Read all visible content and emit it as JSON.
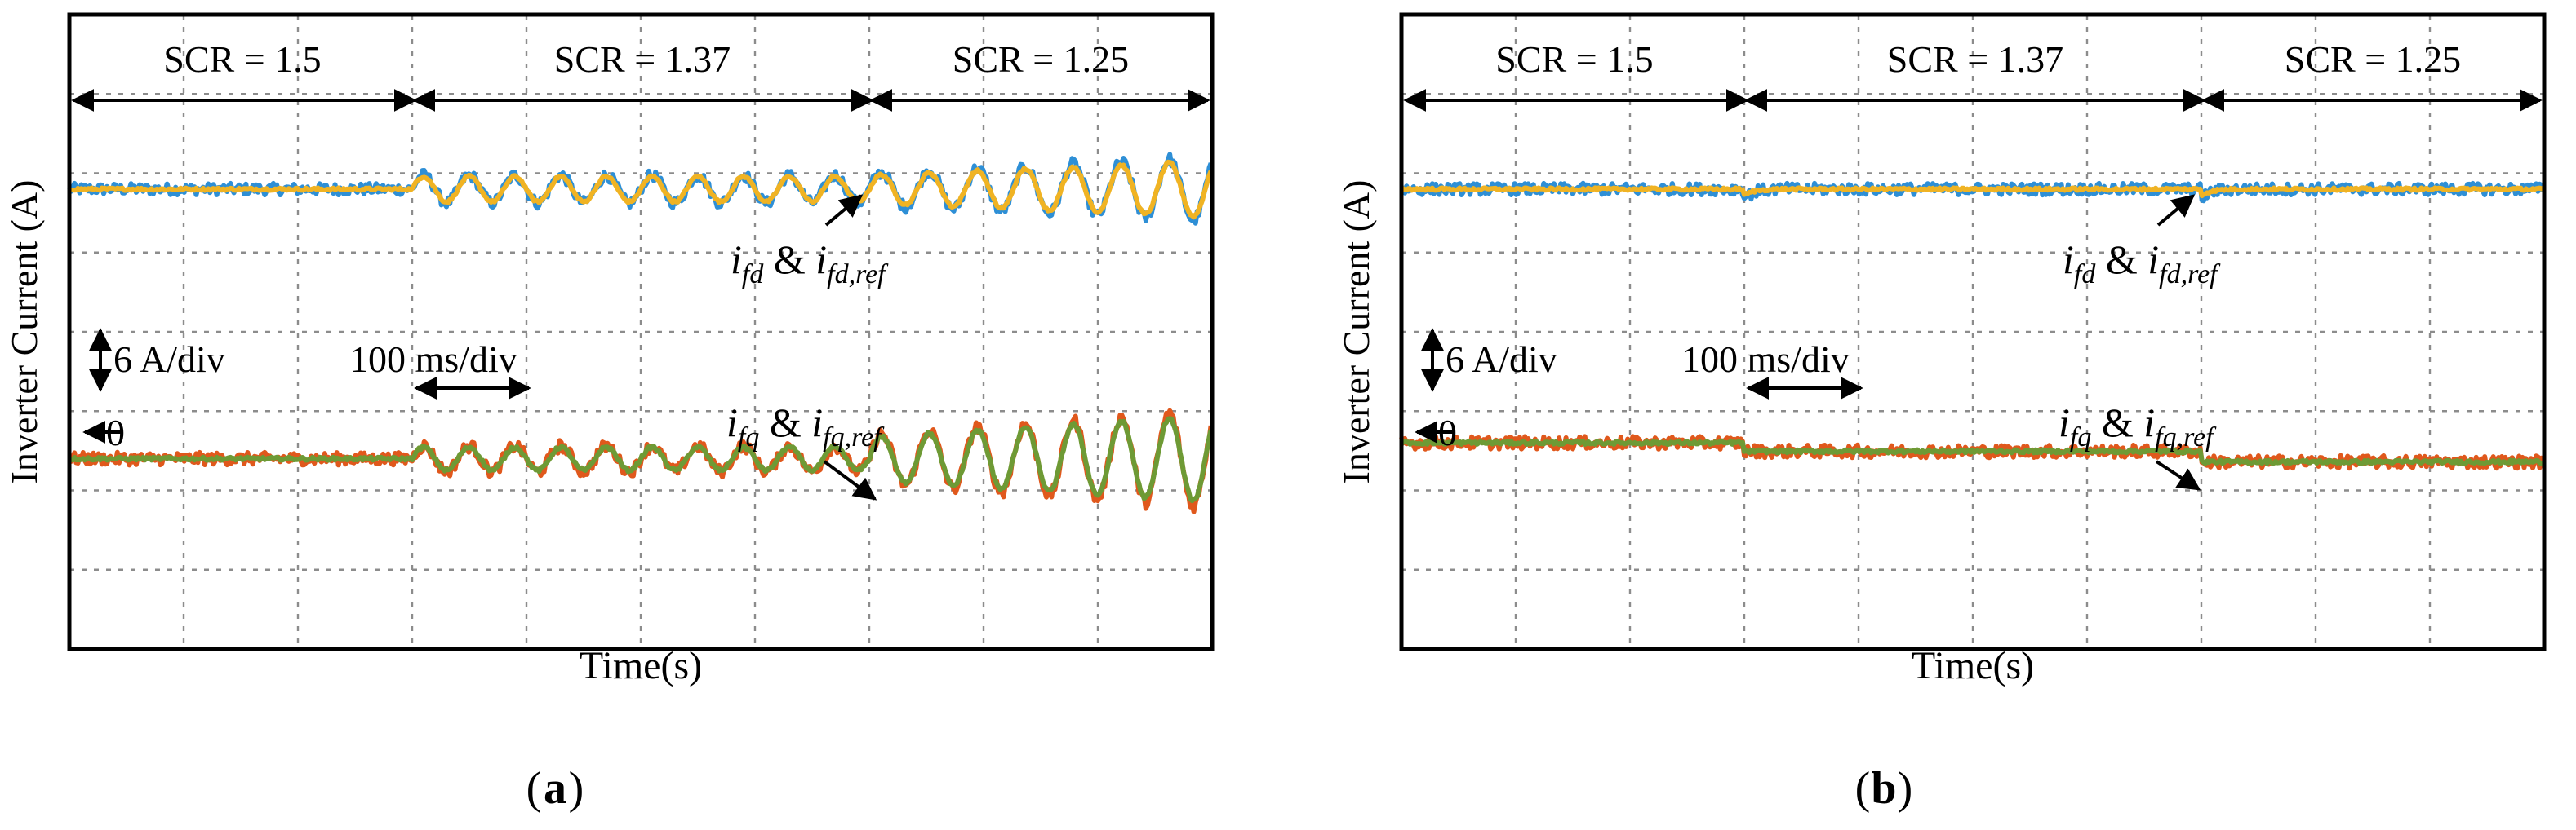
{
  "figure": {
    "colors": {
      "d_current": "#2e8fd6",
      "d_reference": "#f0b323",
      "q_current": "#e0581c",
      "q_reference": "#6e9a35",
      "grid": "#8c8c8c",
      "frame": "#000000"
    }
  },
  "chart_data": [
    {
      "type": "line",
      "panel_label": "(a)",
      "ylabel": "Inverter Current (A)",
      "xlabel": "Time(s)",
      "grid": true,
      "scale_labels": {
        "y": "6 A/div",
        "x": "100 ms/div",
        "zero": "0"
      },
      "xlim_ms": [
        0,
        1000
      ],
      "ylim_A": [
        -27,
        33
      ],
      "segments": [
        {
          "label": "SCR = 1.5",
          "start_ms": 0,
          "end_ms": 300
        },
        {
          "label": "SCR = 1.37",
          "start_ms": 300,
          "end_ms": 700
        },
        {
          "label": "SCR = 1.25",
          "start_ms": 700,
          "end_ms": 1000
        }
      ],
      "annotations": [
        {
          "base": "i",
          "sub": "fd",
          "amp": " & ",
          "base2": "i",
          "sub2": "fd,ref"
        },
        {
          "base": "i",
          "sub": "fq",
          "amp": " & ",
          "base2": "i",
          "sub2": "fq,ref"
        }
      ],
      "series": [
        {
          "quantity": "d-axis current",
          "base_A": 16.5,
          "osc": [
            {
              "start_ms": 300,
              "end_ms": 700,
              "amp_A": 1.3,
              "period_ms": 40
            },
            {
              "start_ms": 700,
              "end_ms": 1000,
              "amp_A": 2.5,
              "period_ms": 42
            }
          ]
        },
        {
          "quantity": "d-axis reference",
          "base_A": 16.5,
          "osc": [
            {
              "start_ms": 300,
              "end_ms": 700,
              "amp_A": 1.2,
              "period_ms": 40
            },
            {
              "start_ms": 700,
              "end_ms": 1000,
              "amp_A": 2.2,
              "period_ms": 42
            }
          ]
        },
        {
          "quantity": "q-axis current",
          "base_A": -9.0,
          "osc": [
            {
              "start_ms": 300,
              "end_ms": 700,
              "amp_A": 1.2,
              "period_ms": 40
            },
            {
              "start_ms": 700,
              "end_ms": 1000,
              "amp_A": 3.8,
              "period_ms": 42
            }
          ]
        },
        {
          "quantity": "q-axis reference",
          "base_A": -9.0,
          "osc": [
            {
              "start_ms": 300,
              "end_ms": 700,
              "amp_A": 1.1,
              "period_ms": 40
            },
            {
              "start_ms": 700,
              "end_ms": 1000,
              "amp_A": 3.4,
              "period_ms": 42
            }
          ]
        }
      ]
    },
    {
      "type": "line",
      "panel_label": "(b)",
      "ylabel": "Inverter Current (A)",
      "xlabel": "Time(s)",
      "grid": true,
      "scale_labels": {
        "y": "6 A/div",
        "x": "100 ms/div",
        "zero": "0"
      },
      "xlim_ms": [
        0,
        1000
      ],
      "ylim_A": [
        -27,
        33
      ],
      "segments": [
        {
          "label": "SCR = 1.5",
          "start_ms": 0,
          "end_ms": 300
        },
        {
          "label": "SCR = 1.37",
          "start_ms": 300,
          "end_ms": 700
        },
        {
          "label": "SCR = 1.25",
          "start_ms": 700,
          "end_ms": 1000
        }
      ],
      "annotations": [
        {
          "base": "i",
          "sub": "fd",
          "amp": " & ",
          "base2": "i",
          "sub2": "fd,ref"
        },
        {
          "base": "i",
          "sub": "fq",
          "amp": " & ",
          "base2": "i",
          "sub2": "fq,ref"
        }
      ],
      "series": [
        {
          "quantity": "d-axis current",
          "base_A": 16.5,
          "steps": [
            {
              "at_ms": 300,
              "dip_A": -0.9
            },
            {
              "at_ms": 700,
              "dip_A": -0.9
            }
          ]
        },
        {
          "quantity": "d-axis reference",
          "base_A": 16.5,
          "steps": [
            {
              "at_ms": 300,
              "dip_A": -0.6
            },
            {
              "at_ms": 700,
              "dip_A": -0.6
            }
          ]
        },
        {
          "quantity": "q-axis current",
          "levels_A": [
            {
              "start_ms": 0,
              "value_A": -7.5
            },
            {
              "start_ms": 300,
              "value_A": -8.3
            },
            {
              "start_ms": 700,
              "value_A": -9.3
            }
          ]
        },
        {
          "quantity": "q-axis reference",
          "levels_A": [
            {
              "start_ms": 0,
              "value_A": -7.5
            },
            {
              "start_ms": 300,
              "value_A": -8.3
            },
            {
              "start_ms": 700,
              "value_A": -9.3
            }
          ]
        }
      ]
    }
  ]
}
